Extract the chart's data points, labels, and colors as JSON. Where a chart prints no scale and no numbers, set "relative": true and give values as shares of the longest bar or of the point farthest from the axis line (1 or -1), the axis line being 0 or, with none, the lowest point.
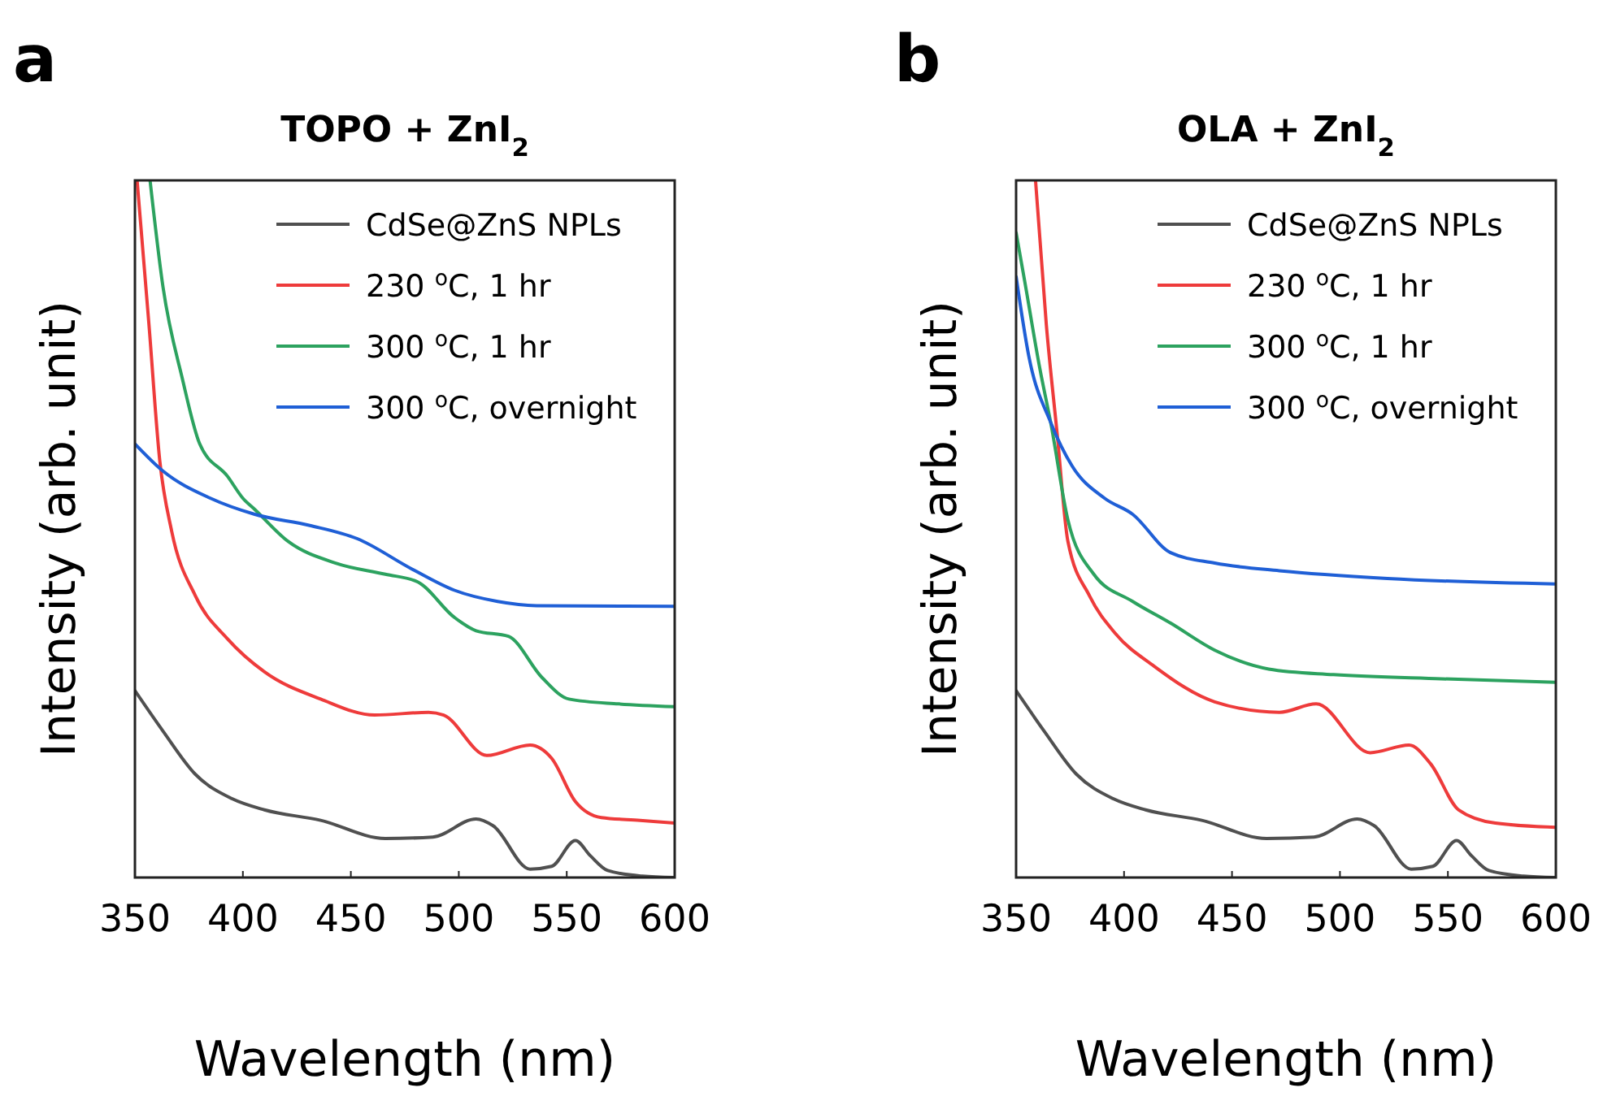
{
  "chart_data": [
    {
      "type": "line",
      "title": "TOPO + ZnI$_{2}$",
      "xlabel": "Wavelength (nm)",
      "ylabel": "Intensity (arb. unit)",
      "annotations": [
        "a"
      ],
      "relative": true,
      "xlim": [
        350,
        600
      ],
      "xticks": [
        350,
        400,
        450,
        500,
        550,
        600
      ],
      "legend": "top right",
      "tick_labels": "x",
      "series": [
        {
          "name": "CdSe@ZnS NPLs",
          "color": "#505050",
          "x": [
            350,
            363,
            378,
            395,
            410,
            436,
            466,
            488,
            508,
            516,
            533,
            543,
            554,
            561,
            569,
            585,
            600
          ],
          "values": [
            0.268,
            0.21,
            0.148,
            0.113,
            0.097,
            0.082,
            0.056,
            0.058,
            0.084,
            0.074,
            0.012,
            0.016,
            0.053,
            0.031,
            0.01,
            0.002,
            0
          ]
        },
        {
          "name": "230 $^{o}$C, 1 hr",
          "color": "#ee3b3b",
          "x": [
            351,
            356.5,
            361.5,
            367,
            378,
            393,
            410,
            436,
            461,
            486,
            493,
            513,
            533,
            543,
            554,
            566,
            584,
            600
          ],
          "values": [
            1,
            0.793,
            0.598,
            0.497,
            0.404,
            0.342,
            0.295,
            0.256,
            0.233,
            0.237,
            0.233,
            0.175,
            0.19,
            0.171,
            0.109,
            0.086,
            0.082,
            0.078
          ]
        },
        {
          "name": "300 $^{o}$C, 1 hr",
          "color": "#2ca25f",
          "x": [
            357,
            363,
            372,
            380,
            393,
            400,
            405.5,
            421,
            443,
            466,
            481,
            498,
            508,
            523,
            538.5,
            551,
            574,
            600
          ],
          "values": [
            1,
            0.847,
            0.715,
            0.622,
            0.575,
            0.544,
            0.528,
            0.482,
            0.451,
            0.435,
            0.424,
            0.373,
            0.354,
            0.346,
            0.287,
            0.256,
            0.249,
            0.245
          ]
        },
        {
          "name": "300 $^{o}$C, overnight",
          "color": "#1f5fd6",
          "x": [
            350,
            363,
            385,
            405.5,
            431,
            453,
            478,
            498,
            518,
            536,
            600
          ],
          "values": [
            0.622,
            0.583,
            0.544,
            0.521,
            0.505,
            0.486,
            0.443,
            0.412,
            0.396,
            0.39,
            0.389
          ]
        }
      ]
    },
    {
      "type": "line",
      "title": "OLA + ZnI$_{2}$",
      "xlabel": "Wavelength (nm)",
      "ylabel": "Intensity (arb. unit)",
      "annotations": [
        "b"
      ],
      "relative": true,
      "xlim": [
        350,
        600
      ],
      "xticks": [
        350,
        400,
        450,
        500,
        550,
        600
      ],
      "legend": "top right",
      "tick_labels": "x",
      "series": [
        {
          "name": "CdSe@ZnS NPLs",
          "color": "#505050",
          "x": [
            350,
            363,
            378,
            395,
            410,
            436,
            466,
            488,
            508,
            516,
            533,
            543,
            554,
            561,
            569,
            585,
            600
          ],
          "values": [
            0.268,
            0.21,
            0.148,
            0.113,
            0.097,
            0.082,
            0.056,
            0.058,
            0.084,
            0.074,
            0.012,
            0.016,
            0.053,
            0.031,
            0.01,
            0.002,
            0
          ]
        },
        {
          "name": "230 $^{o}$C, 1 hr",
          "color": "#ee3b3b",
          "x": [
            359,
            364,
            369,
            374,
            384,
            396,
            414,
            442,
            472,
            489,
            514,
            532,
            542,
            555,
            572,
            600
          ],
          "values": [
            1,
            0.793,
            0.637,
            0.482,
            0.404,
            0.35,
            0.303,
            0.252,
            0.237,
            0.249,
            0.179,
            0.19,
            0.163,
            0.097,
            0.078,
            0.072
          ]
        },
        {
          "name": "300 $^{o}$C, 1 hr",
          "color": "#2ca25f",
          "x": [
            350,
            354,
            361,
            366,
            374,
            386,
            404,
            421.5,
            442,
            467,
            497,
            547,
            600
          ],
          "values": [
            0.925,
            0.855,
            0.73,
            0.653,
            0.513,
            0.435,
            0.396,
            0.365,
            0.326,
            0.299,
            0.291,
            0.285,
            0.28
          ]
        },
        {
          "name": "300 $^{o}$C, overnight",
          "color": "#1f5fd6",
          "x": [
            350,
            356,
            366,
            376,
            391,
            404,
            421.5,
            442,
            472,
            522,
            600
          ],
          "values": [
            0.862,
            0.746,
            0.653,
            0.59,
            0.544,
            0.521,
            0.466,
            0.451,
            0.44,
            0.429,
            0.421
          ]
        }
      ]
    }
  ]
}
